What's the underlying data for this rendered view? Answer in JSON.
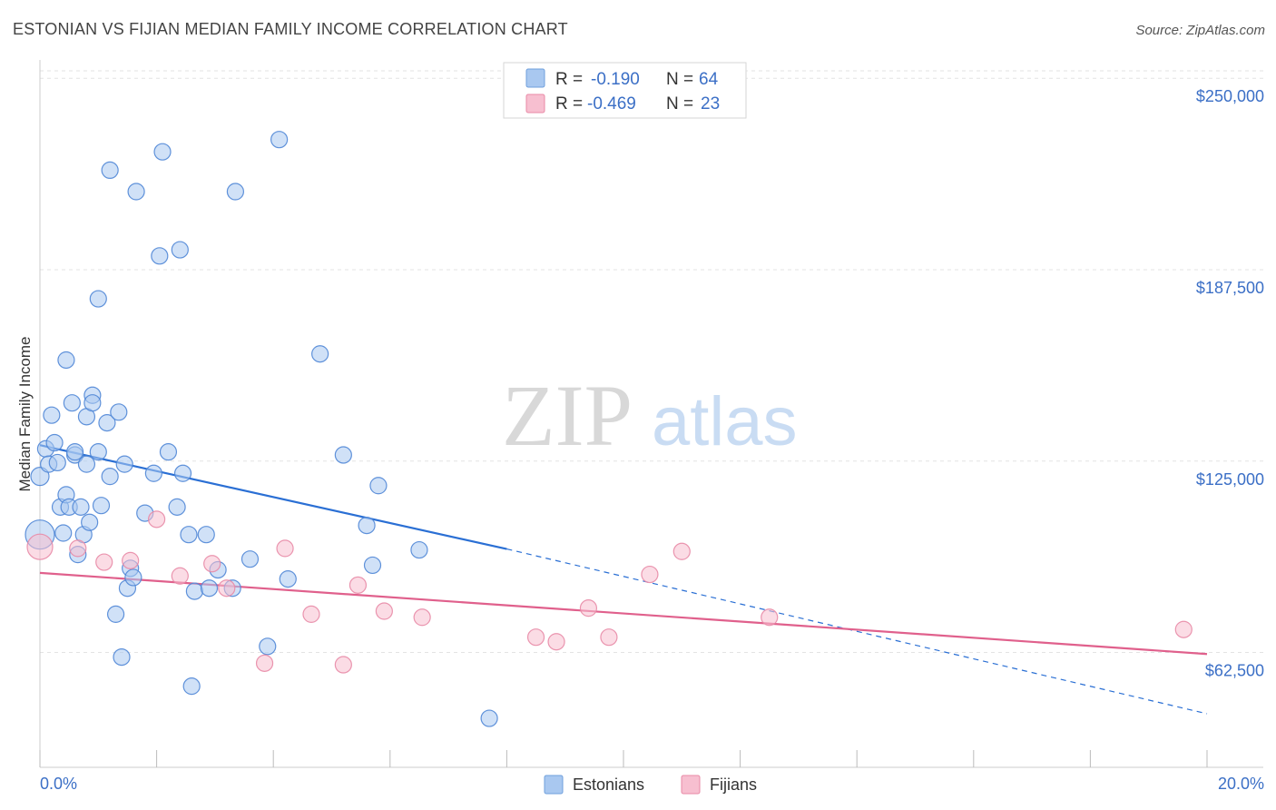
{
  "title": "ESTONIAN VS FIJIAN MEDIAN FAMILY INCOME CORRELATION CHART",
  "source": "Source: ZipAtlas.com",
  "watermark": {
    "zip": "ZIP",
    "atlas": "atlas"
  },
  "chart_data": {
    "type": "scatter",
    "ylabel": "Median Family Income",
    "xlabel": "",
    "xlim": [
      0.0,
      20.0
    ],
    "ylim": [
      25000,
      256000
    ],
    "x_tick_labels": {
      "left": "0.0%",
      "right": "20.0%"
    },
    "y_ticks": [
      {
        "value": 250000,
        "label": "$250,000"
      },
      {
        "value": 187500,
        "label": "$187,500"
      },
      {
        "value": 125000,
        "label": "$125,000"
      },
      {
        "value": 62500,
        "label": "$62,500"
      }
    ],
    "legend": {
      "rows": [
        {
          "r_label": "R =",
          "r_value": "-0.190",
          "n_label": "N =",
          "n_value": "64",
          "color": "#a9c8f0",
          "stroke": "#6f9fdc"
        },
        {
          "r_label": "R =",
          "r_value": "-0.469",
          "n_label": "N =",
          "n_value": "23",
          "color": "#f7bfd0",
          "stroke": "#e88aa6"
        }
      ]
    },
    "series": [
      {
        "name": "Estonians",
        "color": "#a9c8f0",
        "stroke": "#4f86d6",
        "trend_color": "#2a6fd4",
        "trend": {
          "x0": 0.0,
          "y0": 130200,
          "x1": 8.0,
          "y1": 96300,
          "dash_to_x": 20.0,
          "dash_to_y": 42500
        },
        "points": [
          [
            0.0,
            101000,
            16
          ],
          [
            0.0,
            120000,
            10
          ],
          [
            0.1,
            129000,
            9
          ],
          [
            0.15,
            124000,
            9
          ],
          [
            0.2,
            140000,
            9
          ],
          [
            0.25,
            131000,
            9
          ],
          [
            0.3,
            124500,
            9
          ],
          [
            0.35,
            110000,
            9
          ],
          [
            0.4,
            101500,
            9
          ],
          [
            0.45,
            114000,
            9
          ],
          [
            0.45,
            158000,
            9
          ],
          [
            0.5,
            110000,
            9
          ],
          [
            0.55,
            144000,
            9
          ],
          [
            0.6,
            127000,
            9
          ],
          [
            0.6,
            128000,
            9
          ],
          [
            0.65,
            94500,
            9
          ],
          [
            0.7,
            110000,
            9
          ],
          [
            0.75,
            101000,
            9
          ],
          [
            0.8,
            124000,
            9
          ],
          [
            0.8,
            139500,
            9
          ],
          [
            0.85,
            105000,
            9
          ],
          [
            0.9,
            146500,
            9
          ],
          [
            0.9,
            144000,
            9
          ],
          [
            1.0,
            128000,
            9
          ],
          [
            1.0,
            178000,
            9
          ],
          [
            1.05,
            110500,
            9
          ],
          [
            1.15,
            137500,
            9
          ],
          [
            1.2,
            120000,
            9
          ],
          [
            1.2,
            220000,
            9
          ],
          [
            1.3,
            75000,
            9
          ],
          [
            1.35,
            141000,
            9
          ],
          [
            1.4,
            61000,
            9
          ],
          [
            1.45,
            124000,
            9
          ],
          [
            1.5,
            83500,
            9
          ],
          [
            1.55,
            90000,
            9
          ],
          [
            1.6,
            87000,
            9
          ],
          [
            1.65,
            213000,
            9
          ],
          [
            1.8,
            108000,
            9
          ],
          [
            1.95,
            121000,
            9
          ],
          [
            2.05,
            192000,
            9
          ],
          [
            2.1,
            226000,
            9
          ],
          [
            2.2,
            128000,
            9
          ],
          [
            2.35,
            110000,
            9
          ],
          [
            2.4,
            194000,
            9
          ],
          [
            2.45,
            121000,
            9
          ],
          [
            2.55,
            101000,
            9
          ],
          [
            2.65,
            82500,
            9
          ],
          [
            2.85,
            101000,
            9
          ],
          [
            2.9,
            83500,
            9
          ],
          [
            3.05,
            89500,
            9
          ],
          [
            3.3,
            83500,
            9
          ],
          [
            3.35,
            213000,
            9
          ],
          [
            3.6,
            93000,
            9
          ],
          [
            3.9,
            64500,
            9
          ],
          [
            4.1,
            230000,
            9
          ],
          [
            4.25,
            86500,
            9
          ],
          [
            4.8,
            160000,
            9
          ],
          [
            5.2,
            127000,
            9
          ],
          [
            5.6,
            104000,
            9
          ],
          [
            5.7,
            91000,
            9
          ],
          [
            5.8,
            117000,
            9
          ],
          [
            6.5,
            96000,
            9
          ],
          [
            7.7,
            41000,
            9
          ],
          [
            2.6,
            51500,
            9
          ]
        ]
      },
      {
        "name": "Fijians",
        "color": "#f7bfd0",
        "stroke": "#e88aa6",
        "trend_color": "#e0608c",
        "trend": {
          "x0": 0.0,
          "y0": 88500,
          "x1": 20.0,
          "y1": 62000
        },
        "points": [
          [
            0.0,
            97000,
            14
          ],
          [
            0.65,
            96500,
            9
          ],
          [
            1.1,
            92000,
            9
          ],
          [
            1.55,
            92500,
            9
          ],
          [
            2.0,
            106000,
            9
          ],
          [
            2.4,
            87500,
            9
          ],
          [
            2.95,
            91500,
            9
          ],
          [
            3.2,
            83500,
            9
          ],
          [
            3.85,
            59000,
            9
          ],
          [
            4.2,
            96500,
            9
          ],
          [
            4.65,
            75000,
            9
          ],
          [
            5.2,
            58500,
            9
          ],
          [
            5.45,
            84500,
            9
          ],
          [
            5.9,
            76000,
            9
          ],
          [
            6.55,
            74000,
            9
          ],
          [
            8.5,
            67500,
            9
          ],
          [
            8.85,
            66000,
            9
          ],
          [
            9.4,
            77000,
            9
          ],
          [
            9.75,
            67500,
            9
          ],
          [
            10.45,
            88000,
            9
          ],
          [
            11.0,
            95500,
            9
          ],
          [
            12.5,
            74000,
            9
          ],
          [
            19.6,
            70000,
            9
          ]
        ]
      }
    ]
  },
  "bottom_legend": [
    {
      "label": "Estonians",
      "color": "#a9c8f0",
      "stroke": "#6f9fdc"
    },
    {
      "label": "Fijians",
      "color": "#f7bfd0",
      "stroke": "#e88aa6"
    }
  ]
}
